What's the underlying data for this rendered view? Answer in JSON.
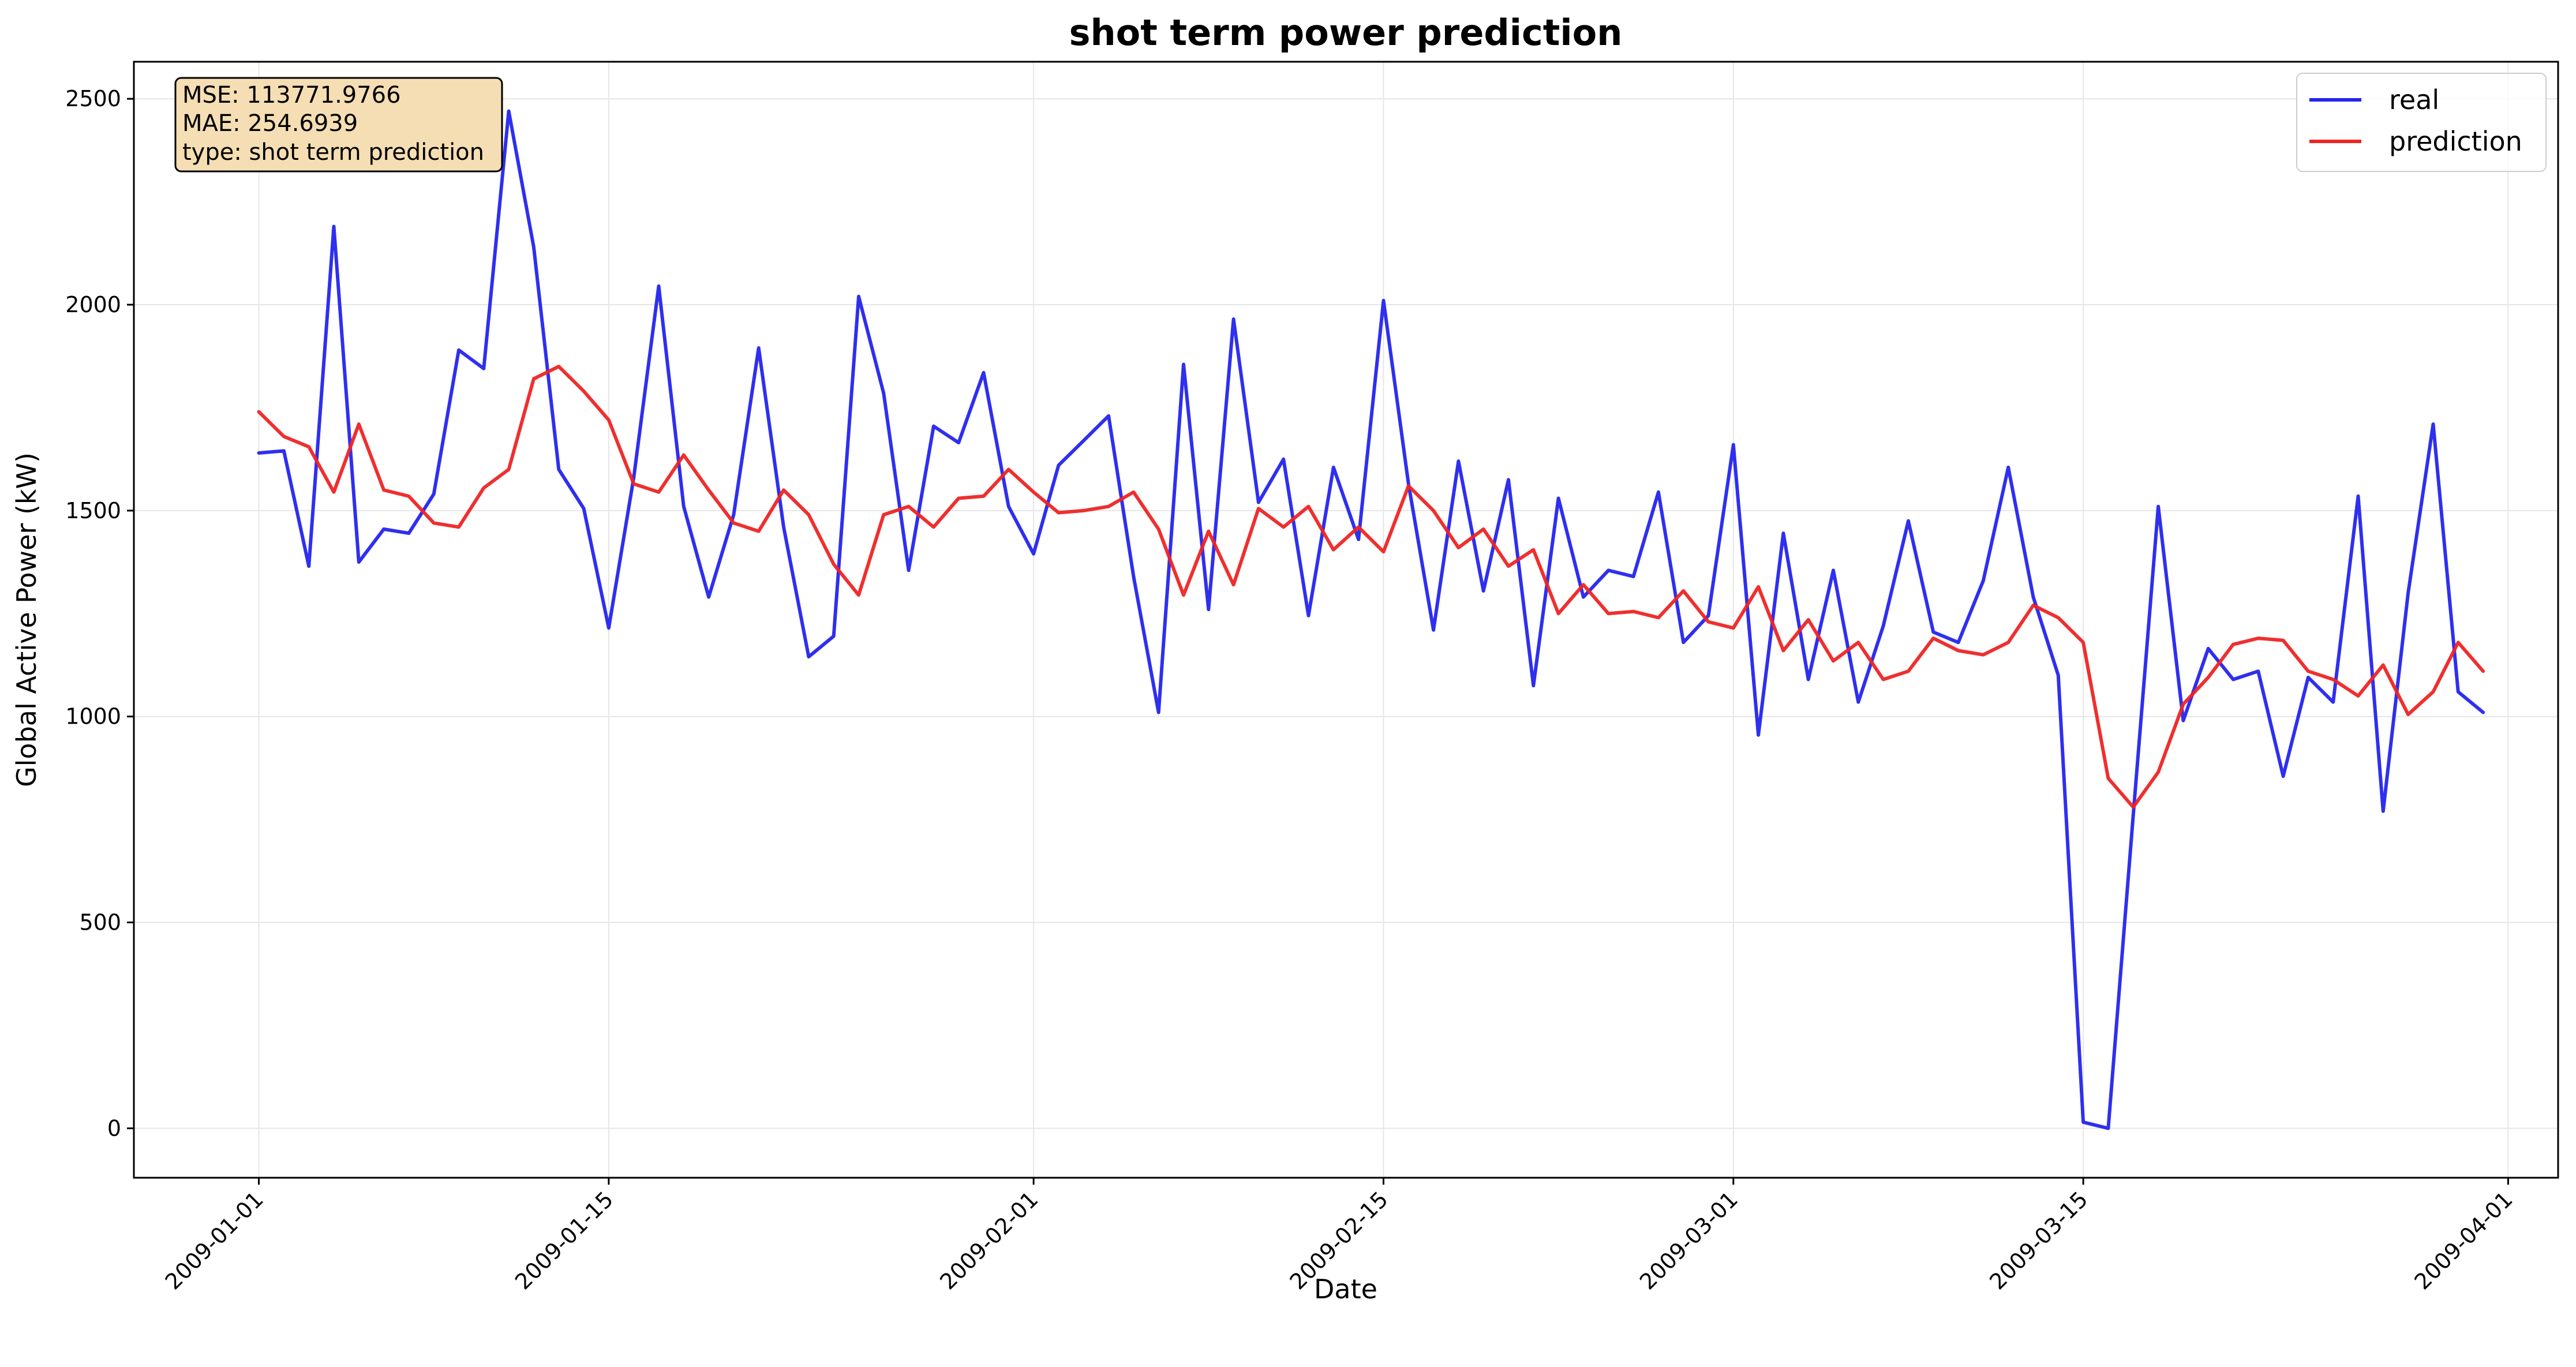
{
  "chart_data": {
    "type": "line",
    "title": "shot term power prediction",
    "xlabel": "Date",
    "ylabel": "Global Active Power (kW)",
    "x_start": "2009-01-01",
    "x_ticks": [
      "2009-01-01",
      "2009-01-15",
      "2009-02-01",
      "2009-02-15",
      "2009-03-01",
      "2009-03-15",
      "2009-04-01"
    ],
    "y_ticks": [
      0,
      500,
      1000,
      1500,
      2000,
      2500
    ],
    "xlim": [
      "2008-12-27",
      "2009-04-03"
    ],
    "ylim": [
      -120,
      2590
    ],
    "grid": true,
    "legend_position": "top-right",
    "stats": {
      "mse": "MSE: 113771.9766",
      "mae": "MAE: 254.6939",
      "type": "type: shot term prediction"
    },
    "series": [
      {
        "name": "real",
        "color": "#2424ee",
        "values": [
          1640,
          1645,
          1365,
          2190,
          1375,
          1455,
          1445,
          1540,
          1890,
          1845,
          2470,
          2140,
          1600,
          1505,
          1215,
          1580,
          2045,
          1510,
          1290,
          1490,
          1895,
          1460,
          1145,
          1195,
          2020,
          1785,
          1355,
          1705,
          1665,
          1835,
          1510,
          1395,
          1610,
          1670,
          1730,
          1340,
          1010,
          1855,
          1260,
          1965,
          1520,
          1625,
          1245,
          1605,
          1430,
          2010,
          1565,
          1210,
          1620,
          1305,
          1575,
          1075,
          1530,
          1290,
          1355,
          1340,
          1545,
          1180,
          1245,
          1660,
          955,
          1445,
          1090,
          1355,
          1035,
          1220,
          1475,
          1205,
          1180,
          1330,
          1605,
          1290,
          1100,
          15,
          0,
          760,
          1510,
          990,
          1165,
          1090,
          1110,
          855,
          1095,
          1035,
          1535,
          770,
          1300,
          1710,
          1060,
          1010
        ]
      },
      {
        "name": "prediction",
        "color": "#ee2424",
        "values": [
          1740,
          1680,
          1655,
          1545,
          1710,
          1550,
          1535,
          1470,
          1460,
          1555,
          1600,
          1820,
          1850,
          1790,
          1720,
          1565,
          1545,
          1635,
          1550,
          1470,
          1450,
          1550,
          1490,
          1370,
          1295,
          1490,
          1510,
          1460,
          1530,
          1535,
          1600,
          1545,
          1495,
          1500,
          1510,
          1545,
          1455,
          1295,
          1450,
          1320,
          1505,
          1460,
          1510,
          1405,
          1460,
          1400,
          1560,
          1500,
          1410,
          1455,
          1365,
          1405,
          1250,
          1320,
          1250,
          1255,
          1240,
          1305,
          1230,
          1215,
          1315,
          1160,
          1235,
          1135,
          1180,
          1090,
          1110,
          1190,
          1160,
          1150,
          1180,
          1270,
          1240,
          1180,
          850,
          780,
          865,
          1030,
          1095,
          1175,
          1190,
          1185,
          1110,
          1090,
          1050,
          1125,
          1005,
          1060,
          1180,
          1110
        ]
      }
    ]
  }
}
